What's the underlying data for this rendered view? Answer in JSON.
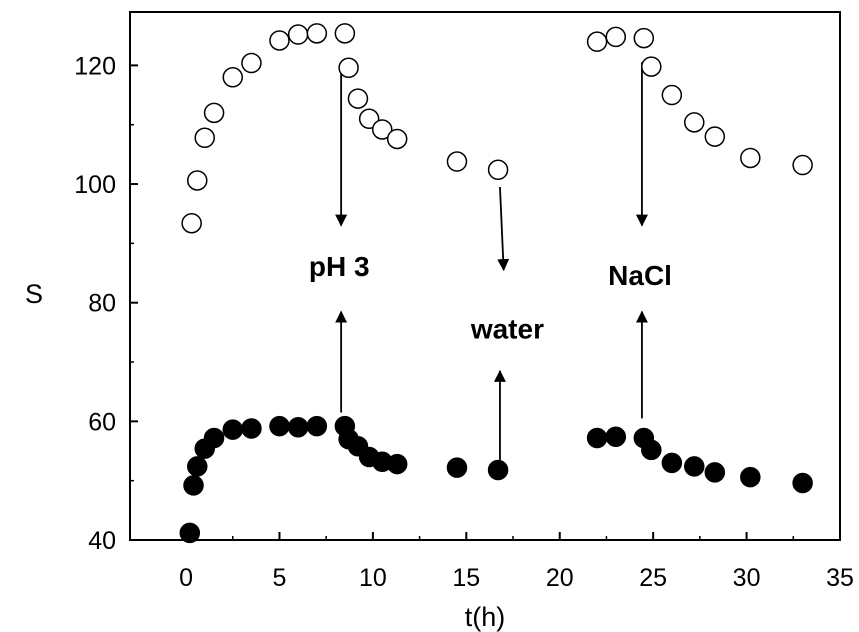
{
  "chart_data": {
    "type": "scatter",
    "xlabel": "t(h)",
    "ylabel": "S",
    "xlim": [
      -3,
      35
    ],
    "ylim": [
      40,
      129
    ],
    "xticks": [
      0,
      5,
      10,
      15,
      20,
      25,
      30,
      35
    ],
    "yticks": [
      40,
      60,
      80,
      100,
      120
    ],
    "grid": false,
    "series": [
      {
        "marker": "open-circle",
        "points": [
          [
            0.3,
            93.4
          ],
          [
            0.6,
            100.6
          ],
          [
            1.0,
            107.8
          ],
          [
            1.5,
            112.0
          ],
          [
            2.5,
            118.0
          ],
          [
            3.5,
            120.4
          ],
          [
            5.0,
            124.2
          ],
          [
            6.0,
            125.2
          ],
          [
            7.0,
            125.4
          ],
          [
            8.5,
            125.4
          ],
          [
            8.7,
            119.6
          ],
          [
            9.2,
            114.4
          ],
          [
            9.8,
            111.0
          ],
          [
            10.5,
            109.2
          ],
          [
            11.3,
            107.6
          ],
          [
            14.5,
            103.8
          ],
          [
            16.7,
            102.4
          ],
          [
            22.0,
            124.0
          ],
          [
            23.0,
            124.8
          ],
          [
            24.5,
            124.6
          ],
          [
            24.9,
            119.8
          ],
          [
            26.0,
            115.0
          ],
          [
            27.2,
            110.4
          ],
          [
            28.3,
            108.0
          ],
          [
            30.2,
            104.4
          ],
          [
            33.0,
            103.2
          ]
        ]
      },
      {
        "marker": "filled-circle",
        "points": [
          [
            0.2,
            41.2
          ],
          [
            0.4,
            49.2
          ],
          [
            0.6,
            52.4
          ],
          [
            1.0,
            55.4
          ],
          [
            1.5,
            57.2
          ],
          [
            2.5,
            58.6
          ],
          [
            3.5,
            58.8
          ],
          [
            5.0,
            59.2
          ],
          [
            6.0,
            59.0
          ],
          [
            7.0,
            59.2
          ],
          [
            8.5,
            59.2
          ],
          [
            8.7,
            57.0
          ],
          [
            9.2,
            55.8
          ],
          [
            9.8,
            54.0
          ],
          [
            10.5,
            53.2
          ],
          [
            11.3,
            52.8
          ],
          [
            14.5,
            52.2
          ],
          [
            16.7,
            51.8
          ],
          [
            22.0,
            57.2
          ],
          [
            23.0,
            57.4
          ],
          [
            24.5,
            57.2
          ],
          [
            24.9,
            55.2
          ],
          [
            26.0,
            53.0
          ],
          [
            27.2,
            52.4
          ],
          [
            28.3,
            51.4
          ],
          [
            30.2,
            50.6
          ],
          [
            33.0,
            49.6
          ]
        ]
      }
    ],
    "annotations": [
      {
        "text": "pH 3",
        "x": 8.2,
        "y": 84.5
      },
      {
        "text": "water",
        "x": 17.2,
        "y": 74.0
      },
      {
        "text": "NaCl",
        "x": 24.3,
        "y": 83.0
      }
    ],
    "arrows": [
      {
        "from": [
          8.3,
          120.5
        ],
        "to": [
          8.3,
          93.0
        ]
      },
      {
        "from": [
          8.3,
          61.5
        ],
        "to": [
          8.3,
          78.5
        ]
      },
      {
        "from": [
          16.8,
          99.5
        ],
        "to": [
          17.0,
          85.5
        ]
      },
      {
        "from": [
          16.8,
          53.5
        ],
        "to": [
          16.8,
          68.5
        ]
      },
      {
        "from": [
          24.4,
          120.5
        ],
        "to": [
          24.4,
          93.0
        ]
      },
      {
        "from": [
          24.4,
          60.5
        ],
        "to": [
          24.4,
          78.5
        ]
      }
    ]
  }
}
